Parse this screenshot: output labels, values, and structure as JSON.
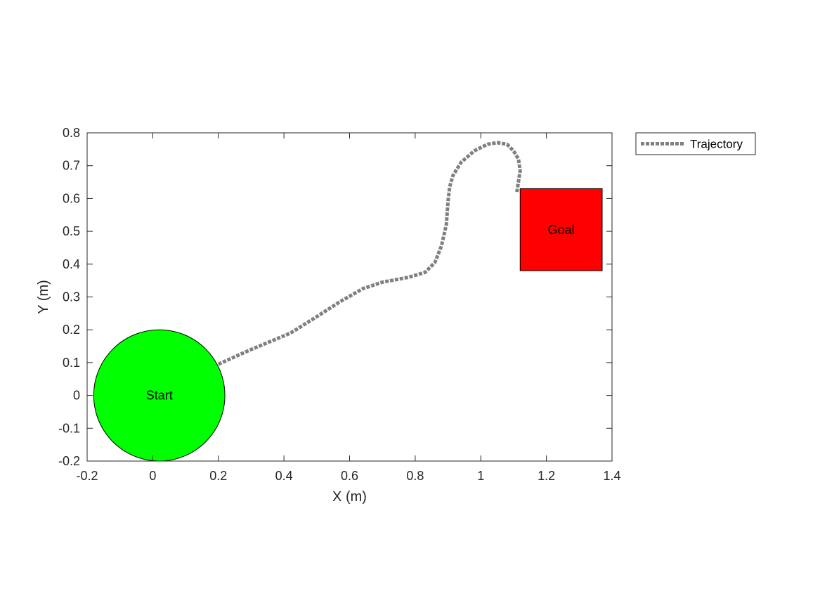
{
  "chart_data": {
    "type": "line",
    "xlabel": "X (m)",
    "ylabel": "Y (m)",
    "xlim": [
      -0.2,
      1.4
    ],
    "ylim": [
      -0.2,
      0.8
    ],
    "x_ticks": [
      "-0.2",
      "0",
      "0.2",
      "0.4",
      "0.6",
      "0.8",
      "1",
      "1.2",
      "1.4"
    ],
    "y_ticks": [
      "-0.2",
      "-0.1",
      "0",
      "0.1",
      "0.2",
      "0.3",
      "0.4",
      "0.5",
      "0.6",
      "0.7",
      "0.8"
    ],
    "grid": false,
    "legend": {
      "placement": "outside-top-right",
      "entries": [
        "Trajectory"
      ]
    },
    "series": [
      {
        "name": "Trajectory",
        "style": "dotted",
        "color": "#808080",
        "x": [
          0.2,
          0.3,
          0.42,
          0.5,
          0.57,
          0.64,
          0.7,
          0.78,
          0.83,
          0.86,
          0.88,
          0.895,
          0.9,
          0.905,
          0.915,
          0.94,
          0.98,
          1.02,
          1.05,
          1.08,
          1.1,
          1.115,
          1.12,
          1.11
        ],
        "y": [
          0.095,
          0.14,
          0.19,
          0.24,
          0.285,
          0.325,
          0.345,
          0.36,
          0.375,
          0.405,
          0.455,
          0.52,
          0.59,
          0.635,
          0.67,
          0.71,
          0.745,
          0.765,
          0.77,
          0.765,
          0.745,
          0.72,
          0.685,
          0.62
        ]
      }
    ],
    "annotations": [
      {
        "shape": "circle",
        "label": "Start",
        "center": [
          0.02,
          0.0
        ],
        "radius": 0.2,
        "fill": "#00ff00"
      },
      {
        "shape": "rectangle",
        "label": "Goal",
        "x_range": [
          1.12,
          1.37
        ],
        "y_range": [
          0.38,
          0.63
        ],
        "fill": "#ff0000"
      }
    ]
  }
}
